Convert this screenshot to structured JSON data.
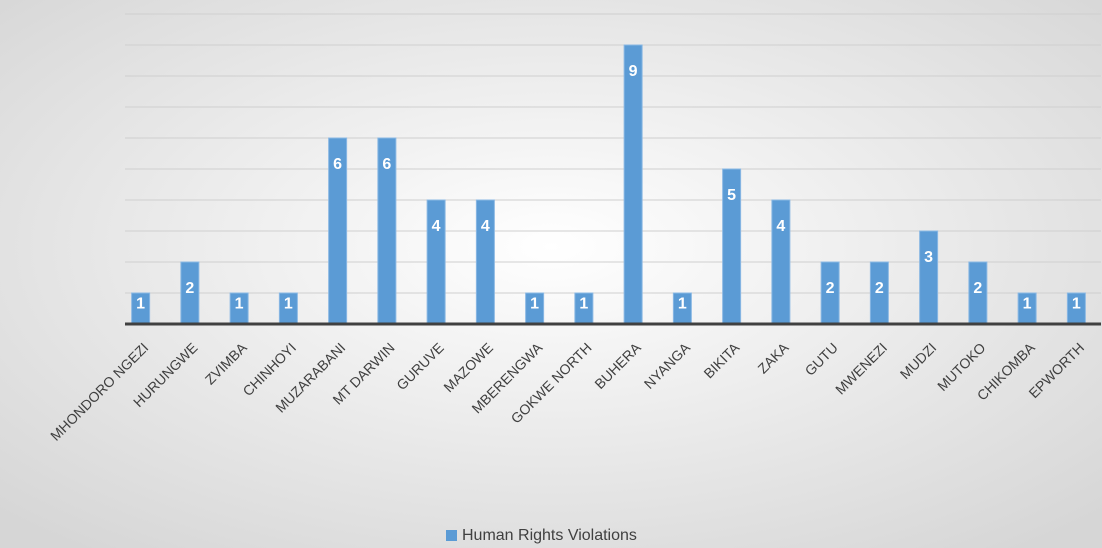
{
  "chart_data": {
    "type": "bar",
    "categories": [
      "MHONDORO NGEZI",
      "HURUNGWE",
      "ZVIMBA",
      "CHINHOYI",
      "MUZARABANI",
      "MT DARWIN",
      "GURUVE",
      "MAZOWE",
      "MBERENGWA",
      "GOKWE NORTH",
      "BUHERA",
      "NYANGA",
      "BIKITA",
      "ZAKA",
      "GUTU",
      "MWENEZI",
      "MUDZI",
      "MUTOKO",
      "CHIKOMBA",
      "EPWORTH"
    ],
    "series": [
      {
        "name": "Human Rights Violations",
        "color": "#5b9bd5",
        "values": [
          1,
          2,
          1,
          1,
          6,
          6,
          4,
          4,
          1,
          1,
          9,
          1,
          5,
          4,
          2,
          2,
          3,
          2,
          1,
          1
        ]
      }
    ],
    "ylim": [
      0,
      10
    ],
    "yticks": [
      0,
      1,
      2,
      3,
      4,
      5,
      6,
      7,
      8,
      9,
      10
    ],
    "grid": true,
    "legend": "bottom"
  }
}
